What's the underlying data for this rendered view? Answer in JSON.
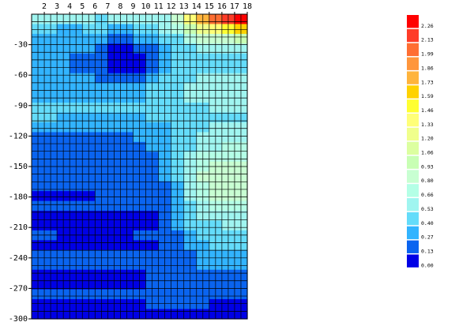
{
  "chart_data": {
    "type": "heatmap",
    "title": "",
    "xlabel": "",
    "ylabel": "",
    "x_ticks": [
      2,
      3,
      4,
      5,
      6,
      7,
      8,
      9,
      10,
      11,
      12,
      13,
      14,
      15,
      16,
      17,
      18
    ],
    "y_ticks": [
      -30,
      -60,
      -90,
      -120,
      -150,
      -180,
      -210,
      -240,
      -270,
      -300
    ],
    "xlim": [
      1,
      18
    ],
    "ylim": [
      0,
      -300
    ],
    "grid": true,
    "legend_placement": "right",
    "colorbar": {
      "levels": [
        "2.26",
        "2.13",
        "1.99",
        "1.86",
        "1.73",
        "1.59",
        "1.46",
        "1.33",
        "1.20",
        "1.06",
        "0.93",
        "0.80",
        "0.66",
        "0.53",
        "0.40",
        "0.27",
        "0.13",
        "0.00"
      ],
      "colors": [
        "#ff0000",
        "#ff3c28",
        "#ff6e32",
        "#ff963c",
        "#ffb43c",
        "#ffd200",
        "#ffff32",
        "#ffff78",
        "#f0ff8c",
        "#dcffa0",
        "#c8ffb4",
        "#c8ffd2",
        "#b4ffe6",
        "#a0f5f0",
        "#64dcfa",
        "#32b4ff",
        "#0a64f0",
        "#0000e6"
      ]
    },
    "series": [
      {
        "values": [
          0.6,
          0.6,
          0.55,
          0.55,
          0.55,
          0.5,
          0.55,
          0.55,
          0.55,
          0.55,
          0.65,
          0.9,
          1.4,
          1.8,
          2.0,
          2.2,
          2.3
        ]
      },
      {
        "values": [
          0.45,
          0.4,
          0.35,
          0.35,
          0.4,
          0.4,
          0.35,
          0.35,
          0.4,
          0.45,
          0.55,
          0.7,
          1.0,
          1.2,
          1.4,
          1.5,
          1.6
        ]
      },
      {
        "values": [
          0.3,
          0.3,
          0.3,
          0.3,
          0.3,
          0.3,
          0.25,
          0.25,
          0.3,
          0.35,
          0.4,
          0.5,
          0.7,
          0.8,
          0.9,
          0.9,
          0.95
        ]
      },
      {
        "values": [
          0.3,
          0.3,
          0.3,
          0.3,
          0.3,
          0.2,
          0.1,
          0.1,
          0.15,
          0.25,
          0.35,
          0.4,
          0.5,
          0.55,
          0.6,
          0.6,
          0.6
        ]
      },
      {
        "values": [
          0.3,
          0.3,
          0.3,
          0.25,
          0.25,
          0.15,
          0.05,
          0.05,
          0.1,
          0.2,
          0.3,
          0.4,
          0.45,
          0.5,
          0.5,
          0.5,
          0.5
        ]
      },
      {
        "values": [
          0.3,
          0.3,
          0.3,
          0.25,
          0.25,
          0.15,
          0.08,
          0.02,
          0.03,
          0.15,
          0.3,
          0.4,
          0.45,
          0.5,
          0.5,
          0.5,
          0.5
        ]
      },
      {
        "values": [
          0.3,
          0.3,
          0.3,
          0.3,
          0.3,
          0.2,
          0.15,
          0.15,
          0.2,
          0.3,
          0.4,
          0.45,
          0.5,
          0.55,
          0.55,
          0.55,
          0.55
        ]
      },
      {
        "values": [
          0.35,
          0.35,
          0.35,
          0.35,
          0.35,
          0.3,
          0.3,
          0.3,
          0.35,
          0.4,
          0.45,
          0.5,
          0.55,
          0.58,
          0.6,
          0.6,
          0.6
        ]
      },
      {
        "values": [
          0.3,
          0.3,
          0.3,
          0.3,
          0.3,
          0.3,
          0.3,
          0.3,
          0.35,
          0.4,
          0.45,
          0.5,
          0.55,
          0.55,
          0.58,
          0.58,
          0.6
        ]
      },
      {
        "values": [
          0.4,
          0.45,
          0.45,
          0.4,
          0.4,
          0.4,
          0.4,
          0.4,
          0.4,
          0.4,
          0.45,
          0.45,
          0.5,
          0.5,
          0.55,
          0.55,
          0.55
        ]
      },
      {
        "values": [
          0.4,
          0.4,
          0.35,
          0.35,
          0.35,
          0.35,
          0.35,
          0.35,
          0.35,
          0.4,
          0.4,
          0.4,
          0.45,
          0.5,
          0.5,
          0.5,
          0.5
        ]
      },
      {
        "values": [
          0.3,
          0.3,
          0.3,
          0.3,
          0.3,
          0.3,
          0.3,
          0.3,
          0.3,
          0.35,
          0.35,
          0.4,
          0.45,
          0.5,
          0.55,
          0.55,
          0.55
        ]
      },
      {
        "values": [
          0.25,
          0.25,
          0.2,
          0.2,
          0.2,
          0.2,
          0.2,
          0.25,
          0.3,
          0.35,
          0.35,
          0.4,
          0.45,
          0.55,
          0.6,
          0.6,
          0.6
        ]
      },
      {
        "values": [
          0.2,
          0.2,
          0.2,
          0.2,
          0.2,
          0.2,
          0.2,
          0.2,
          0.2,
          0.3,
          0.35,
          0.4,
          0.5,
          0.6,
          0.65,
          0.7,
          0.7
        ]
      },
      {
        "values": [
          0.2,
          0.2,
          0.2,
          0.2,
          0.2,
          0.2,
          0.2,
          0.2,
          0.2,
          0.25,
          0.3,
          0.4,
          0.6,
          0.7,
          0.75,
          0.75,
          0.75
        ]
      },
      {
        "values": [
          0.2,
          0.2,
          0.2,
          0.2,
          0.2,
          0.2,
          0.2,
          0.2,
          0.2,
          0.25,
          0.3,
          0.4,
          0.65,
          0.75,
          0.8,
          0.8,
          0.8
        ]
      },
      {
        "values": [
          0.2,
          0.2,
          0.2,
          0.2,
          0.2,
          0.2,
          0.2,
          0.2,
          0.2,
          0.22,
          0.3,
          0.4,
          0.65,
          0.8,
          0.85,
          0.88,
          0.88
        ]
      },
      {
        "values": [
          0.15,
          0.15,
          0.2,
          0.2,
          0.2,
          0.2,
          0.2,
          0.2,
          0.2,
          0.22,
          0.25,
          0.3,
          0.6,
          0.75,
          0.85,
          0.9,
          0.9
        ]
      },
      {
        "values": [
          0.08,
          0.08,
          0.1,
          0.1,
          0.12,
          0.15,
          0.15,
          0.2,
          0.2,
          0.22,
          0.25,
          0.3,
          0.55,
          0.7,
          0.8,
          0.85,
          0.85
        ]
      },
      {
        "values": [
          0.15,
          0.15,
          0.15,
          0.15,
          0.15,
          0.15,
          0.15,
          0.15,
          0.15,
          0.18,
          0.2,
          0.3,
          0.5,
          0.6,
          0.7,
          0.75,
          0.75
        ]
      },
      {
        "values": [
          0.05,
          0.05,
          0.05,
          0.05,
          0.08,
          0.08,
          0.1,
          0.1,
          0.1,
          0.12,
          0.2,
          0.3,
          0.45,
          0.55,
          0.6,
          0.65,
          0.65
        ]
      },
      {
        "values": [
          0.05,
          0.05,
          0.05,
          0.05,
          0.05,
          0.05,
          0.05,
          0.05,
          0.05,
          0.1,
          0.2,
          0.3,
          0.4,
          0.45,
          0.5,
          0.55,
          0.55
        ]
      },
      {
        "values": [
          0.15,
          0.15,
          0.12,
          0.12,
          0.12,
          0.12,
          0.12,
          0.12,
          0.15,
          0.15,
          0.2,
          0.25,
          0.35,
          0.4,
          0.45,
          0.45,
          0.45
        ]
      },
      {
        "values": [
          0.05,
          0.05,
          0.05,
          0.05,
          0.05,
          0.05,
          0.05,
          0.08,
          0.1,
          0.12,
          0.2,
          0.25,
          0.3,
          0.35,
          0.4,
          0.4,
          0.4
        ]
      },
      {
        "values": [
          0.15,
          0.15,
          0.15,
          0.15,
          0.15,
          0.15,
          0.15,
          0.15,
          0.15,
          0.15,
          0.2,
          0.25,
          0.25,
          0.3,
          0.3,
          0.35,
          0.35
        ]
      },
      {
        "values": [
          0.2,
          0.2,
          0.15,
          0.15,
          0.15,
          0.15,
          0.15,
          0.2,
          0.2,
          0.2,
          0.2,
          0.25,
          0.25,
          0.3,
          0.3,
          0.3,
          0.3
        ]
      },
      {
        "values": [
          0.05,
          0.1,
          0.1,
          0.05,
          0.05,
          0.05,
          0.1,
          0.1,
          0.1,
          0.15,
          0.2,
          0.25,
          0.2,
          0.25,
          0.25,
          0.25,
          0.25
        ]
      },
      {
        "values": [
          0.1,
          0.1,
          0.1,
          0.1,
          0.05,
          0.05,
          0.05,
          0.05,
          0.1,
          0.15,
          0.2,
          0.2,
          0.2,
          0.2,
          0.2,
          0.2,
          0.2
        ]
      },
      {
        "values": [
          0.25,
          0.25,
          0.2,
          0.2,
          0.2,
          0.2,
          0.2,
          0.2,
          0.2,
          0.2,
          0.2,
          0.15,
          0.15,
          0.15,
          0.15,
          0.15,
          0.15
        ]
      },
      {
        "values": [
          0.1,
          0.1,
          0.1,
          0.1,
          0.1,
          0.1,
          0.1,
          0.1,
          0.1,
          0.15,
          0.15,
          0.15,
          0.15,
          0.15,
          0.1,
          0.1,
          0.1
        ]
      },
      {
        "values": [
          0.1,
          0.1,
          0.1,
          0.1,
          0.1,
          0.1,
          0.1,
          0.1,
          0.1,
          0.1,
          0.1,
          0.1,
          0.1,
          0.1,
          0.1,
          0.1,
          0.1
        ]
      }
    ]
  }
}
